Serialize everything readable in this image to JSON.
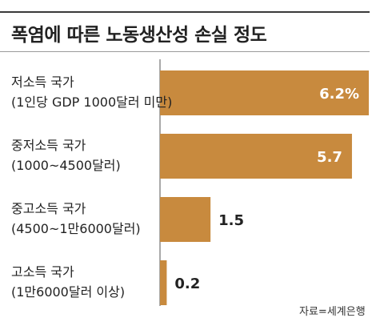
{
  "title": "폭염에 따른 노동생산성 손실 정도",
  "source": "자료=세계은행",
  "colors": {
    "bar": "#C88A3E",
    "rule": "#3a3a3a"
  },
  "chart_data": {
    "type": "bar",
    "orientation": "horizontal",
    "categories": [
      {
        "name": "저소득 국가",
        "sub": "(1인당 GDP 1000달러 미만)"
      },
      {
        "name": "중저소득 국가",
        "sub": "(1000~4500달러)"
      },
      {
        "name": "중고소득 국가",
        "sub": "(4500~1만6000달러)"
      },
      {
        "name": "고소득 국가",
        "sub": "(1만6000달러 이상)"
      }
    ],
    "values": [
      6.2,
      5.7,
      1.5,
      0.2
    ],
    "value_labels": [
      "6.2%",
      "5.7",
      "1.5",
      "0.2"
    ],
    "xlim": [
      0,
      6.2
    ],
    "grid": false,
    "legend": "none"
  }
}
